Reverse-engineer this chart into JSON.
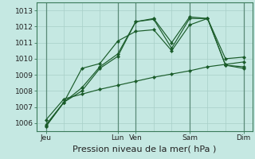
{
  "title": "",
  "xlabel": "Pression niveau de la mer( hPa )",
  "bg_color": "#c5e8e2",
  "grid_color": "#a8cfc8",
  "line_color": "#1a5c2a",
  "ylim": [
    1005.5,
    1013.5
  ],
  "yticks": [
    1006,
    1007,
    1008,
    1009,
    1010,
    1011,
    1012,
    1013
  ],
  "day_labels": [
    "Jeu",
    "Lun",
    "Ven",
    "Sam",
    "Dim"
  ],
  "day_positions": [
    0,
    4,
    5,
    8,
    11
  ],
  "n_points": 12,
  "series": [
    [
      1005.8,
      1007.3,
      1008.2,
      1009.5,
      1010.3,
      1012.3,
      1012.5,
      1011.0,
      1012.6,
      1012.5,
      1009.6,
      1009.4
    ],
    [
      1005.8,
      1007.3,
      1008.0,
      1009.4,
      1010.15,
      1012.3,
      1012.45,
      1010.65,
      1012.5,
      1012.5,
      1009.6,
      1009.5
    ],
    [
      1005.9,
      1007.3,
      1009.4,
      1009.7,
      1011.1,
      1011.7,
      1011.8,
      1010.5,
      1012.1,
      1012.5,
      1010.0,
      1010.1
    ],
    [
      1006.2,
      1007.5,
      1007.8,
      1008.1,
      1008.35,
      1008.6,
      1008.85,
      1009.05,
      1009.25,
      1009.5,
      1009.65,
      1009.8
    ]
  ],
  "xlabel_fontsize": 8,
  "tick_fontsize": 6.5
}
